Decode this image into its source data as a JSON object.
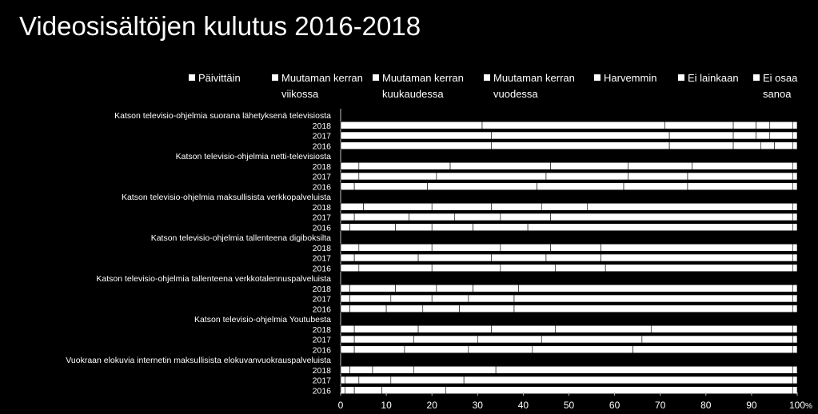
{
  "chart_data": {
    "type": "bar",
    "stacked": true,
    "orientation": "horizontal",
    "title": "Videosisältöjen kulutus 2016-2018",
    "x_unit": "%",
    "xlim": [
      0,
      100
    ],
    "x_ticks": [
      "0",
      "10",
      "20",
      "30",
      "40",
      "50",
      "60",
      "70",
      "80",
      "90",
      "100"
    ],
    "legend_position": "top",
    "series": [
      {
        "name": "Päivittäin",
        "color": "#ffffff"
      },
      {
        "name": "Muutaman kerran viikossa",
        "color": "#ffffff"
      },
      {
        "name": "Muutaman kerran kuukaudessa",
        "color": "#ffffff"
      },
      {
        "name": "Muutaman kerran vuodessa",
        "color": "#ffffff"
      },
      {
        "name": "Harvemmin",
        "color": "#ffffff"
      },
      {
        "name": "Ei lainkaan",
        "color": "#ffffff"
      },
      {
        "name": "Ei osaa sanoa",
        "color": "#ffffff"
      }
    ],
    "groups": [
      {
        "label": "Katson televisio-ohjelmia suorana lähetyksenä televisiosta",
        "rows": [
          {
            "year": "2018",
            "values": [
              31,
              40,
              15,
              5,
              3,
              5,
              1
            ]
          },
          {
            "year": "2017",
            "values": [
              33,
              39,
              14,
              5,
              3,
              5,
              1
            ]
          },
          {
            "year": "2016",
            "values": [
              33,
              39,
              14,
              6,
              3,
              4,
              1
            ]
          }
        ]
      },
      {
        "label": "Katson televisio-ohjelmia netti-televisiosta",
        "rows": [
          {
            "year": "2018",
            "values": [
              4,
              20,
              22,
              17,
              14,
              22,
              1
            ]
          },
          {
            "year": "2017",
            "values": [
              4,
              17,
              24,
              18,
              13,
              23,
              1
            ]
          },
          {
            "year": "2016",
            "values": [
              3,
              16,
              24,
              19,
              14,
              23,
              1
            ]
          }
        ]
      },
      {
        "label": "Katson televisio-ohjelmia maksullisista verkkopalveluista",
        "rows": [
          {
            "year": "2018",
            "values": [
              5,
              15,
              13,
              11,
              10,
              45,
              1
            ]
          },
          {
            "year": "2017",
            "values": [
              3,
              12,
              10,
              10,
              11,
              53,
              1
            ]
          },
          {
            "year": "2016",
            "values": [
              2,
              10,
              8,
              9,
              12,
              58,
              1
            ]
          }
        ]
      },
      {
        "label": "Katson televisio-ohjelmia tallenteena digiboksilta",
        "rows": [
          {
            "year": "2018",
            "values": [
              4,
              16,
              15,
              11,
              11,
              42,
              1
            ]
          },
          {
            "year": "2017",
            "values": [
              3,
              14,
              16,
              12,
              12,
              42,
              1
            ]
          },
          {
            "year": "2016",
            "values": [
              4,
              16,
              15,
              12,
              11,
              41,
              1
            ]
          }
        ]
      },
      {
        "label": "Katson televisio-ohjelmia tallenteena verkkotalennuspalveluista",
        "rows": [
          {
            "year": "2018",
            "values": [
              2,
              10,
              9,
              8,
              10,
              60,
              1
            ]
          },
          {
            "year": "2017",
            "values": [
              2,
              9,
              9,
              8,
              10,
              61,
              1
            ]
          },
          {
            "year": "2016",
            "values": [
              2,
              8,
              8,
              8,
              12,
              61,
              1
            ]
          }
        ]
      },
      {
        "label": "Katson televisio-ohjelmia Youtubesta",
        "rows": [
          {
            "year": "2018",
            "values": [
              3,
              14,
              16,
              14,
              21,
              31,
              1
            ]
          },
          {
            "year": "2017",
            "values": [
              3,
              13,
              14,
              14,
              22,
              33,
              1
            ]
          },
          {
            "year": "2016",
            "values": [
              3,
              11,
              14,
              14,
              22,
              35,
              1
            ]
          }
        ]
      },
      {
        "label": "Vuokraan elokuvia internetin maksullisista elokuvanvuokrauspalveluista",
        "rows": [
          {
            "year": "2018",
            "values": [
              0,
              2,
              5,
              9,
              18,
              65,
              1
            ]
          },
          {
            "year": "2017",
            "values": [
              0,
              1,
              3,
              7,
              16,
              72,
              1
            ]
          },
          {
            "year": "2016",
            "values": [
              0,
              1,
              2,
              6,
              14,
              76,
              1
            ]
          }
        ]
      }
    ]
  },
  "legend_lines": [
    [
      "Päivittäin"
    ],
    [
      "Muutaman kerran",
      "viikossa"
    ],
    [
      "Muutaman kerran",
      "kuukaudessa"
    ],
    [
      "Muutaman kerran",
      "vuodessa"
    ],
    [
      "Harvemmin"
    ],
    [
      "Ei lainkaan"
    ],
    [
      "Ei osaa",
      "sanoa"
    ]
  ]
}
